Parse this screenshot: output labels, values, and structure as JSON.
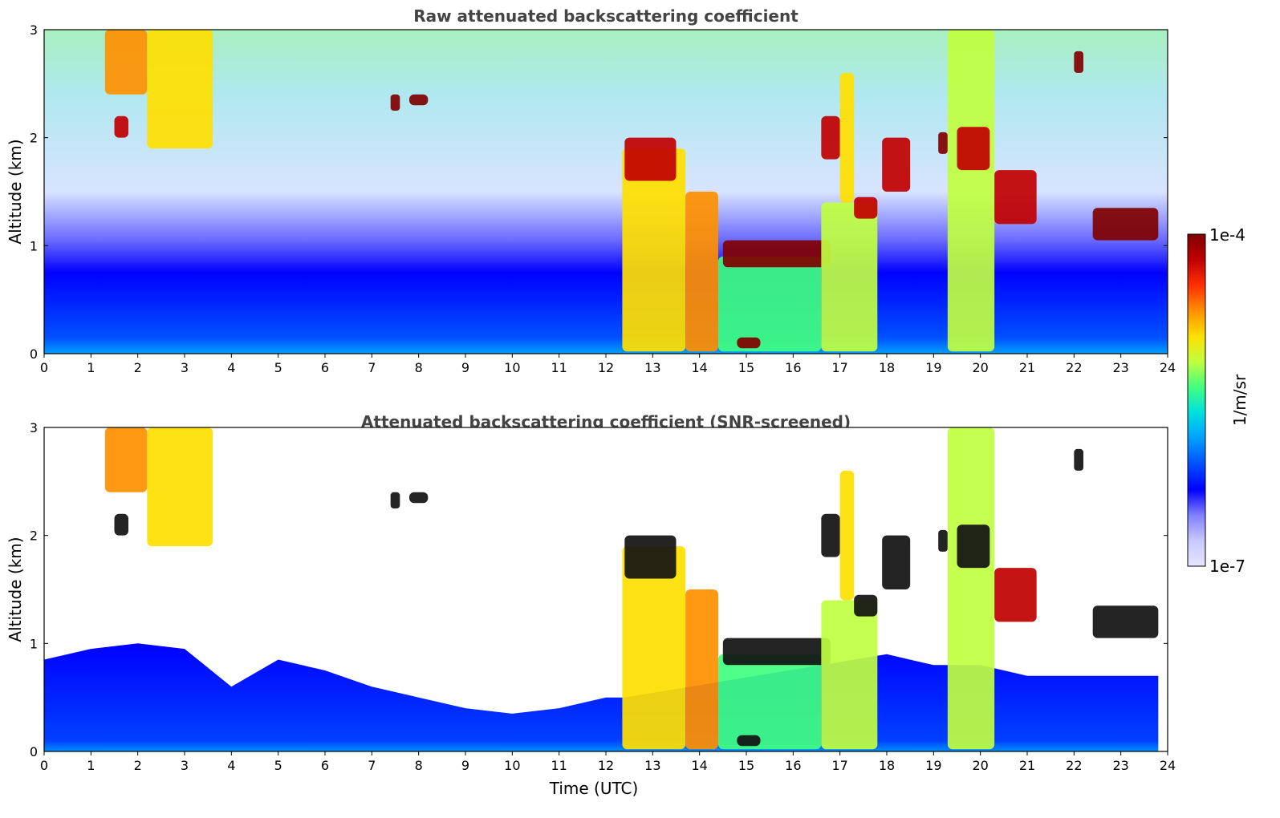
{
  "chart_data": [
    {
      "type": "heatmap",
      "title": "Raw attenuated backscattering coefficient",
      "xlabel": "",
      "ylabel": "Altitude (km)",
      "xlim": [
        0,
        24
      ],
      "ylim": [
        0,
        3
      ],
      "x_ticks": [
        "0",
        "1",
        "2",
        "3",
        "4",
        "5",
        "6",
        "7",
        "8",
        "9",
        "10",
        "11",
        "12",
        "13",
        "14",
        "15",
        "16",
        "17",
        "18",
        "19",
        "20",
        "21",
        "22",
        "23",
        "24"
      ],
      "y_ticks": [
        "0",
        "1",
        "2",
        "3"
      ],
      "clouds": [
        {
          "x0": 1.3,
          "x1": 2.2,
          "y0": 2.4,
          "y1": 3.0,
          "level": 0.75
        },
        {
          "x0": 2.2,
          "x1": 3.6,
          "y0": 1.9,
          "y1": 3.0,
          "level": 0.7
        },
        {
          "x0": 1.5,
          "x1": 1.8,
          "y0": 2.0,
          "y1": 2.2,
          "level": 0.95
        },
        {
          "x0": 7.4,
          "x1": 7.6,
          "y0": 2.25,
          "y1": 2.4,
          "level": 1.0
        },
        {
          "x0": 7.8,
          "x1": 8.2,
          "y0": 2.3,
          "y1": 2.4,
          "level": 1.0
        },
        {
          "x0": 12.35,
          "x1": 13.7,
          "y0": 0.02,
          "y1": 1.9,
          "level": 0.72
        },
        {
          "x0": 12.4,
          "x1": 13.5,
          "y0": 1.6,
          "y1": 2.0,
          "level": 0.95
        },
        {
          "x0": 13.7,
          "x1": 14.4,
          "y0": 0.02,
          "y1": 1.5,
          "level": 0.8
        },
        {
          "x0": 14.4,
          "x1": 16.6,
          "y0": 0.02,
          "y1": 0.9,
          "level": 0.55
        },
        {
          "x0": 14.5,
          "x1": 16.8,
          "y0": 0.8,
          "y1": 1.05,
          "level": 1.0
        },
        {
          "x0": 16.6,
          "x1": 17.8,
          "y0": 0.02,
          "y1": 1.4,
          "level": 0.6
        },
        {
          "x0": 16.6,
          "x1": 17.0,
          "y0": 1.8,
          "y1": 2.2,
          "level": 0.95
        },
        {
          "x0": 17.0,
          "x1": 17.3,
          "y0": 1.4,
          "y1": 2.6,
          "level": 0.7
        },
        {
          "x0": 17.3,
          "x1": 17.8,
          "y0": 1.25,
          "y1": 1.45,
          "level": 0.95
        },
        {
          "x0": 17.9,
          "x1": 18.5,
          "y0": 1.5,
          "y1": 2.0,
          "level": 0.95
        },
        {
          "x0": 19.1,
          "x1": 19.3,
          "y0": 1.85,
          "y1": 2.05,
          "level": 1.0
        },
        {
          "x0": 19.3,
          "x1": 20.3,
          "y0": 0.02,
          "y1": 3.0,
          "level": 0.65
        },
        {
          "x0": 19.5,
          "x1": 20.2,
          "y0": 1.7,
          "y1": 2.1,
          "level": 0.95
        },
        {
          "x0": 20.3,
          "x1": 21.2,
          "y0": 1.2,
          "y1": 1.7,
          "level": 0.9
        },
        {
          "x0": 22.0,
          "x1": 22.2,
          "y0": 2.6,
          "y1": 2.8,
          "level": 1.0
        },
        {
          "x0": 22.4,
          "x1": 23.8,
          "y0": 1.05,
          "y1": 1.35,
          "level": 1.0
        },
        {
          "x0": 14.8,
          "x1": 15.3,
          "y0": 0.05,
          "y1": 0.15,
          "level": 1.0
        }
      ]
    },
    {
      "type": "heatmap",
      "title": "Attenuated backscattering coefficient (SNR-screened)",
      "xlabel": "Time (UTC)",
      "ylabel": "Altitude (km)",
      "xlim": [
        0,
        24
      ],
      "ylim": [
        0,
        3
      ],
      "x_ticks": [
        "0",
        "1",
        "2",
        "3",
        "4",
        "5",
        "6",
        "7",
        "8",
        "9",
        "10",
        "11",
        "12",
        "13",
        "14",
        "15",
        "16",
        "17",
        "18",
        "19",
        "20",
        "21",
        "22",
        "23",
        "24"
      ],
      "y_ticks": [
        "0",
        "1",
        "2",
        "3"
      ]
    }
  ],
  "colorbar": {
    "max_label": "1e-4",
    "min_label": "1e-7",
    "unit_label": "1/m/sr",
    "colors": [
      "#e6e6ff",
      "#c8c8ff",
      "#8080ff",
      "#0000ff",
      "#0050ff",
      "#00a0ff",
      "#00e0e0",
      "#40ff80",
      "#c0ff40",
      "#ffe000",
      "#ff9000",
      "#ff3000",
      "#c00000",
      "#800000"
    ]
  }
}
